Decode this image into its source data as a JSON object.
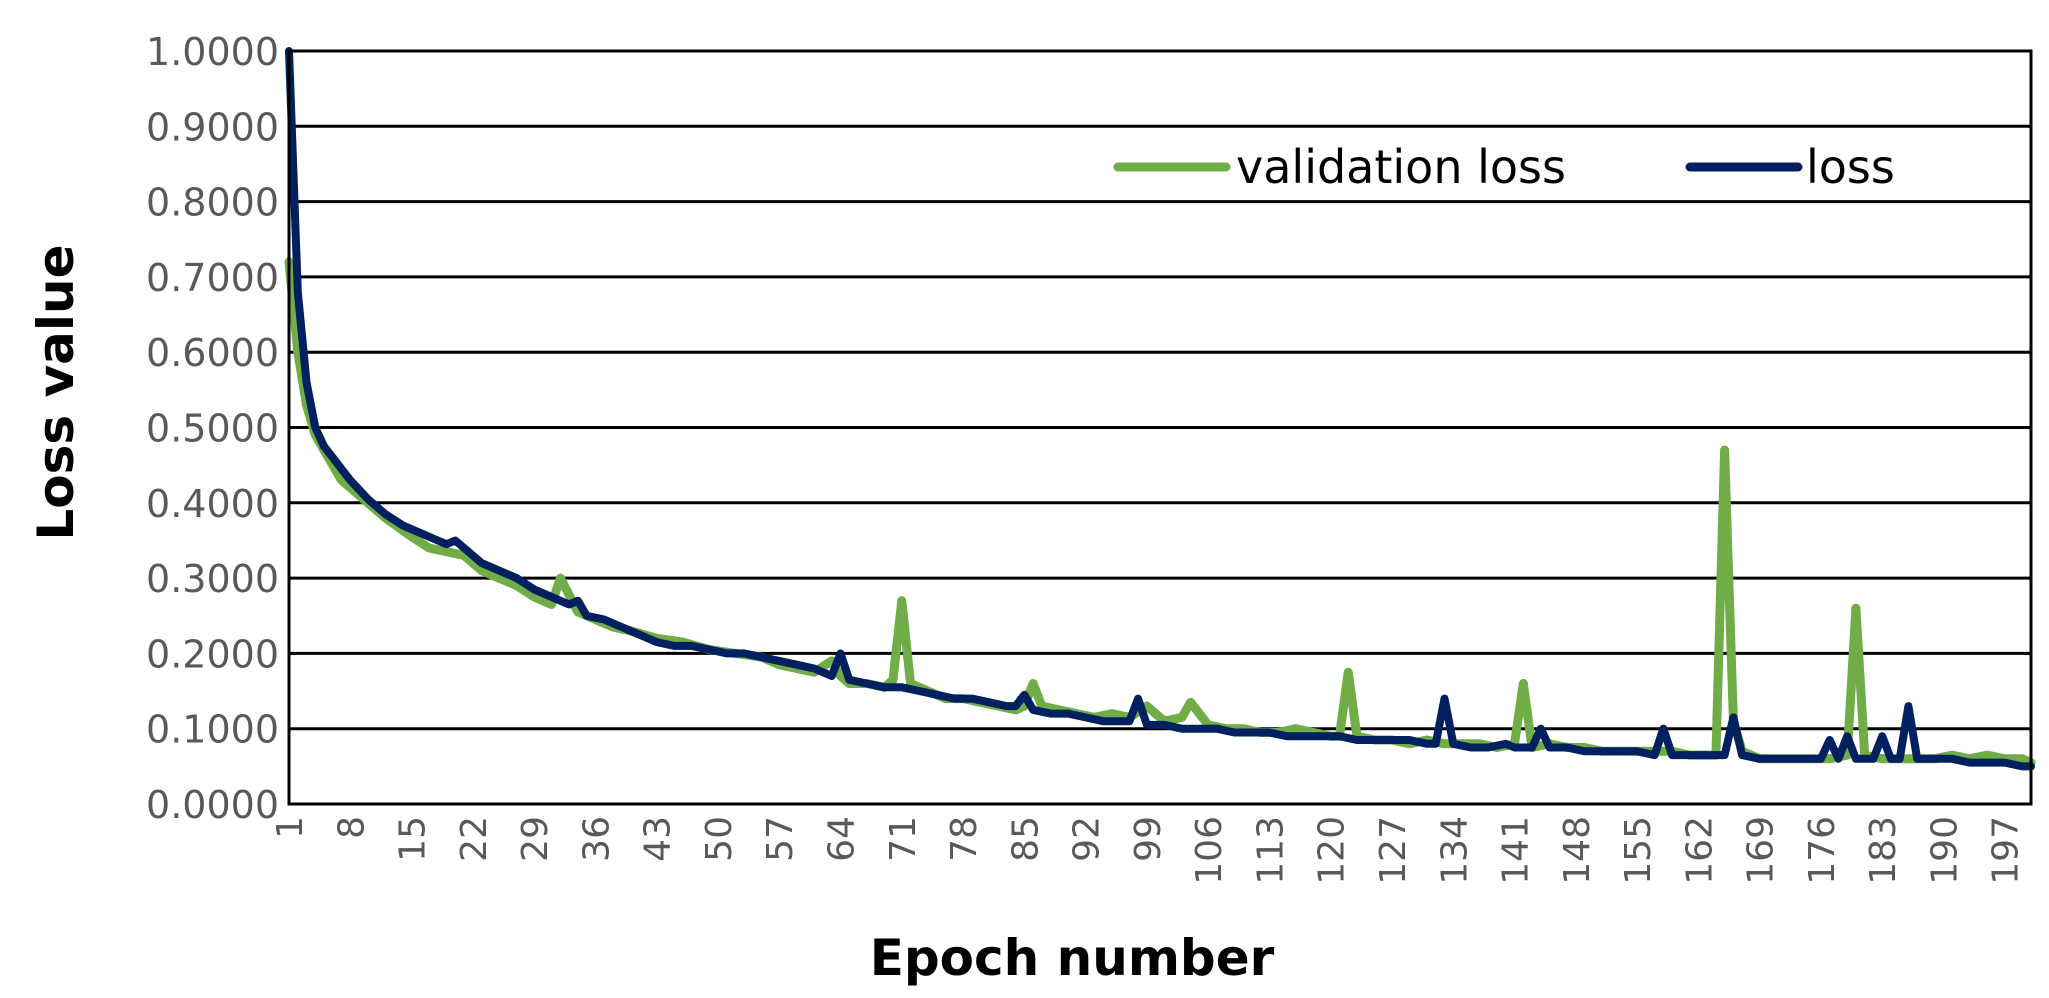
{
  "chart_data": {
    "type": "line",
    "xlabel": "Epoch number",
    "ylabel": "Loss value",
    "xlim": [
      1,
      200
    ],
    "ylim": [
      0,
      1
    ],
    "y_ticks": [
      "0.0000",
      "0.1000",
      "0.2000",
      "0.3000",
      "0.4000",
      "0.5000",
      "0.6000",
      "0.7000",
      "0.8000",
      "0.9000",
      "1.0000"
    ],
    "y_tick_values": [
      0,
      0.1,
      0.2,
      0.3,
      0.4,
      0.5,
      0.6,
      0.7,
      0.8,
      0.9,
      1.0
    ],
    "x_ticks": [
      "1",
      "8",
      "15",
      "22",
      "29",
      "36",
      "43",
      "50",
      "57",
      "64",
      "71",
      "78",
      "85",
      "92",
      "99",
      "106",
      "113",
      "120",
      "127",
      "134",
      "141",
      "148",
      "155",
      "162",
      "169",
      "176",
      "183",
      "190",
      "197"
    ],
    "x_tick_values": [
      1,
      8,
      15,
      22,
      29,
      36,
      43,
      50,
      57,
      64,
      71,
      78,
      85,
      92,
      99,
      106,
      113,
      120,
      127,
      134,
      141,
      148,
      155,
      162,
      169,
      176,
      183,
      190,
      197
    ],
    "grid": "horizontal",
    "legend_position": "top-right",
    "series": [
      {
        "name": "validation loss",
        "color": "#70AD47",
        "points": [
          [
            1,
            0.72
          ],
          [
            2,
            0.6
          ],
          [
            3,
            0.53
          ],
          [
            4,
            0.49
          ],
          [
            5,
            0.47
          ],
          [
            6,
            0.45
          ],
          [
            7,
            0.43
          ],
          [
            8,
            0.42
          ],
          [
            10,
            0.4
          ],
          [
            12,
            0.38
          ],
          [
            15,
            0.355
          ],
          [
            17,
            0.34
          ],
          [
            19,
            0.335
          ],
          [
            21,
            0.33
          ],
          [
            23,
            0.31
          ],
          [
            25,
            0.3
          ],
          [
            27,
            0.29
          ],
          [
            29,
            0.275
          ],
          [
            31,
            0.265
          ],
          [
            32,
            0.3
          ],
          [
            34,
            0.255
          ],
          [
            36,
            0.245
          ],
          [
            38,
            0.235
          ],
          [
            40,
            0.23
          ],
          [
            43,
            0.22
          ],
          [
            46,
            0.215
          ],
          [
            49,
            0.205
          ],
          [
            52,
            0.2
          ],
          [
            55,
            0.195
          ],
          [
            57,
            0.185
          ],
          [
            59,
            0.18
          ],
          [
            61,
            0.175
          ],
          [
            63,
            0.19
          ],
          [
            64,
            0.17
          ],
          [
            65,
            0.16
          ],
          [
            67,
            0.16
          ],
          [
            69,
            0.155
          ],
          [
            70,
            0.165
          ],
          [
            71,
            0.27
          ],
          [
            72,
            0.16
          ],
          [
            74,
            0.15
          ],
          [
            76,
            0.14
          ],
          [
            78,
            0.14
          ],
          [
            80,
            0.135
          ],
          [
            82,
            0.13
          ],
          [
            84,
            0.125
          ],
          [
            85,
            0.13
          ],
          [
            86,
            0.16
          ],
          [
            87,
            0.13
          ],
          [
            89,
            0.125
          ],
          [
            91,
            0.12
          ],
          [
            93,
            0.115
          ],
          [
            95,
            0.12
          ],
          [
            97,
            0.115
          ],
          [
            99,
            0.13
          ],
          [
            101,
            0.11
          ],
          [
            103,
            0.115
          ],
          [
            104,
            0.135
          ],
          [
            106,
            0.105
          ],
          [
            108,
            0.1
          ],
          [
            110,
            0.1
          ],
          [
            112,
            0.095
          ],
          [
            114,
            0.095
          ],
          [
            116,
            0.1
          ],
          [
            118,
            0.095
          ],
          [
            120,
            0.09
          ],
          [
            121,
            0.09
          ],
          [
            122,
            0.175
          ],
          [
            123,
            0.09
          ],
          [
            125,
            0.085
          ],
          [
            127,
            0.085
          ],
          [
            129,
            0.08
          ],
          [
            131,
            0.085
          ],
          [
            133,
            0.08
          ],
          [
            135,
            0.08
          ],
          [
            137,
            0.08
          ],
          [
            139,
            0.075
          ],
          [
            141,
            0.08
          ],
          [
            142,
            0.16
          ],
          [
            143,
            0.075
          ],
          [
            145,
            0.08
          ],
          [
            147,
            0.075
          ],
          [
            149,
            0.075
          ],
          [
            151,
            0.07
          ],
          [
            153,
            0.07
          ],
          [
            155,
            0.07
          ],
          [
            157,
            0.07
          ],
          [
            159,
            0.07
          ],
          [
            161,
            0.065
          ],
          [
            163,
            0.065
          ],
          [
            164,
            0.065
          ],
          [
            165,
            0.47
          ],
          [
            166,
            0.11
          ],
          [
            167,
            0.07
          ],
          [
            169,
            0.06
          ],
          [
            171,
            0.06
          ],
          [
            173,
            0.06
          ],
          [
            175,
            0.06
          ],
          [
            177,
            0.06
          ],
          [
            179,
            0.065
          ],
          [
            180,
            0.26
          ],
          [
            181,
            0.065
          ],
          [
            183,
            0.06
          ],
          [
            185,
            0.06
          ],
          [
            187,
            0.06
          ],
          [
            189,
            0.06
          ],
          [
            191,
            0.065
          ],
          [
            193,
            0.06
          ],
          [
            195,
            0.065
          ],
          [
            197,
            0.06
          ],
          [
            199,
            0.06
          ],
          [
            200,
            0.055
          ]
        ]
      },
      {
        "name": "loss",
        "color": "#002060",
        "points": [
          [
            1,
            1.0
          ],
          [
            2,
            0.68
          ],
          [
            3,
            0.56
          ],
          [
            4,
            0.5
          ],
          [
            5,
            0.475
          ],
          [
            6,
            0.46
          ],
          [
            7,
            0.445
          ],
          [
            8,
            0.43
          ],
          [
            10,
            0.405
          ],
          [
            12,
            0.385
          ],
          [
            14,
            0.37
          ],
          [
            16,
            0.36
          ],
          [
            18,
            0.35
          ],
          [
            19,
            0.345
          ],
          [
            20,
            0.35
          ],
          [
            21,
            0.34
          ],
          [
            23,
            0.32
          ],
          [
            25,
            0.31
          ],
          [
            27,
            0.3
          ],
          [
            29,
            0.285
          ],
          [
            31,
            0.275
          ],
          [
            33,
            0.265
          ],
          [
            34,
            0.27
          ],
          [
            35,
            0.25
          ],
          [
            37,
            0.245
          ],
          [
            39,
            0.235
          ],
          [
            41,
            0.225
          ],
          [
            43,
            0.215
          ],
          [
            45,
            0.21
          ],
          [
            47,
            0.21
          ],
          [
            49,
            0.205
          ],
          [
            51,
            0.2
          ],
          [
            53,
            0.2
          ],
          [
            55,
            0.195
          ],
          [
            57,
            0.19
          ],
          [
            59,
            0.185
          ],
          [
            61,
            0.18
          ],
          [
            63,
            0.17
          ],
          [
            64,
            0.2
          ],
          [
            65,
            0.165
          ],
          [
            67,
            0.16
          ],
          [
            69,
            0.155
          ],
          [
            71,
            0.155
          ],
          [
            73,
            0.15
          ],
          [
            75,
            0.145
          ],
          [
            77,
            0.14
          ],
          [
            79,
            0.14
          ],
          [
            81,
            0.135
          ],
          [
            83,
            0.13
          ],
          [
            84,
            0.13
          ],
          [
            85,
            0.145
          ],
          [
            86,
            0.125
          ],
          [
            88,
            0.12
          ],
          [
            90,
            0.12
          ],
          [
            92,
            0.115
          ],
          [
            94,
            0.11
          ],
          [
            96,
            0.11
          ],
          [
            97,
            0.11
          ],
          [
            98,
            0.14
          ],
          [
            99,
            0.105
          ],
          [
            101,
            0.105
          ],
          [
            103,
            0.1
          ],
          [
            105,
            0.1
          ],
          [
            107,
            0.1
          ],
          [
            109,
            0.095
          ],
          [
            111,
            0.095
          ],
          [
            113,
            0.095
          ],
          [
            115,
            0.09
          ],
          [
            117,
            0.09
          ],
          [
            119,
            0.09
          ],
          [
            121,
            0.09
          ],
          [
            123,
            0.085
          ],
          [
            125,
            0.085
          ],
          [
            127,
            0.085
          ],
          [
            129,
            0.085
          ],
          [
            131,
            0.08
          ],
          [
            132,
            0.08
          ],
          [
            133,
            0.14
          ],
          [
            134,
            0.08
          ],
          [
            136,
            0.075
          ],
          [
            138,
            0.075
          ],
          [
            140,
            0.08
          ],
          [
            141,
            0.075
          ],
          [
            143,
            0.075
          ],
          [
            144,
            0.1
          ],
          [
            145,
            0.075
          ],
          [
            147,
            0.075
          ],
          [
            149,
            0.07
          ],
          [
            151,
            0.07
          ],
          [
            153,
            0.07
          ],
          [
            155,
            0.07
          ],
          [
            157,
            0.065
          ],
          [
            158,
            0.1
          ],
          [
            159,
            0.065
          ],
          [
            161,
            0.065
          ],
          [
            163,
            0.065
          ],
          [
            165,
            0.065
          ],
          [
            166,
            0.115
          ],
          [
            167,
            0.065
          ],
          [
            169,
            0.06
          ],
          [
            171,
            0.06
          ],
          [
            173,
            0.06
          ],
          [
            175,
            0.06
          ],
          [
            176,
            0.06
          ],
          [
            177,
            0.085
          ],
          [
            178,
            0.06
          ],
          [
            179,
            0.09
          ],
          [
            180,
            0.06
          ],
          [
            182,
            0.06
          ],
          [
            183,
            0.09
          ],
          [
            184,
            0.06
          ],
          [
            185,
            0.06
          ],
          [
            186,
            0.13
          ],
          [
            187,
            0.06
          ],
          [
            189,
            0.06
          ],
          [
            191,
            0.06
          ],
          [
            193,
            0.055
          ],
          [
            195,
            0.055
          ],
          [
            197,
            0.055
          ],
          [
            199,
            0.05
          ],
          [
            200,
            0.05
          ]
        ]
      }
    ]
  }
}
